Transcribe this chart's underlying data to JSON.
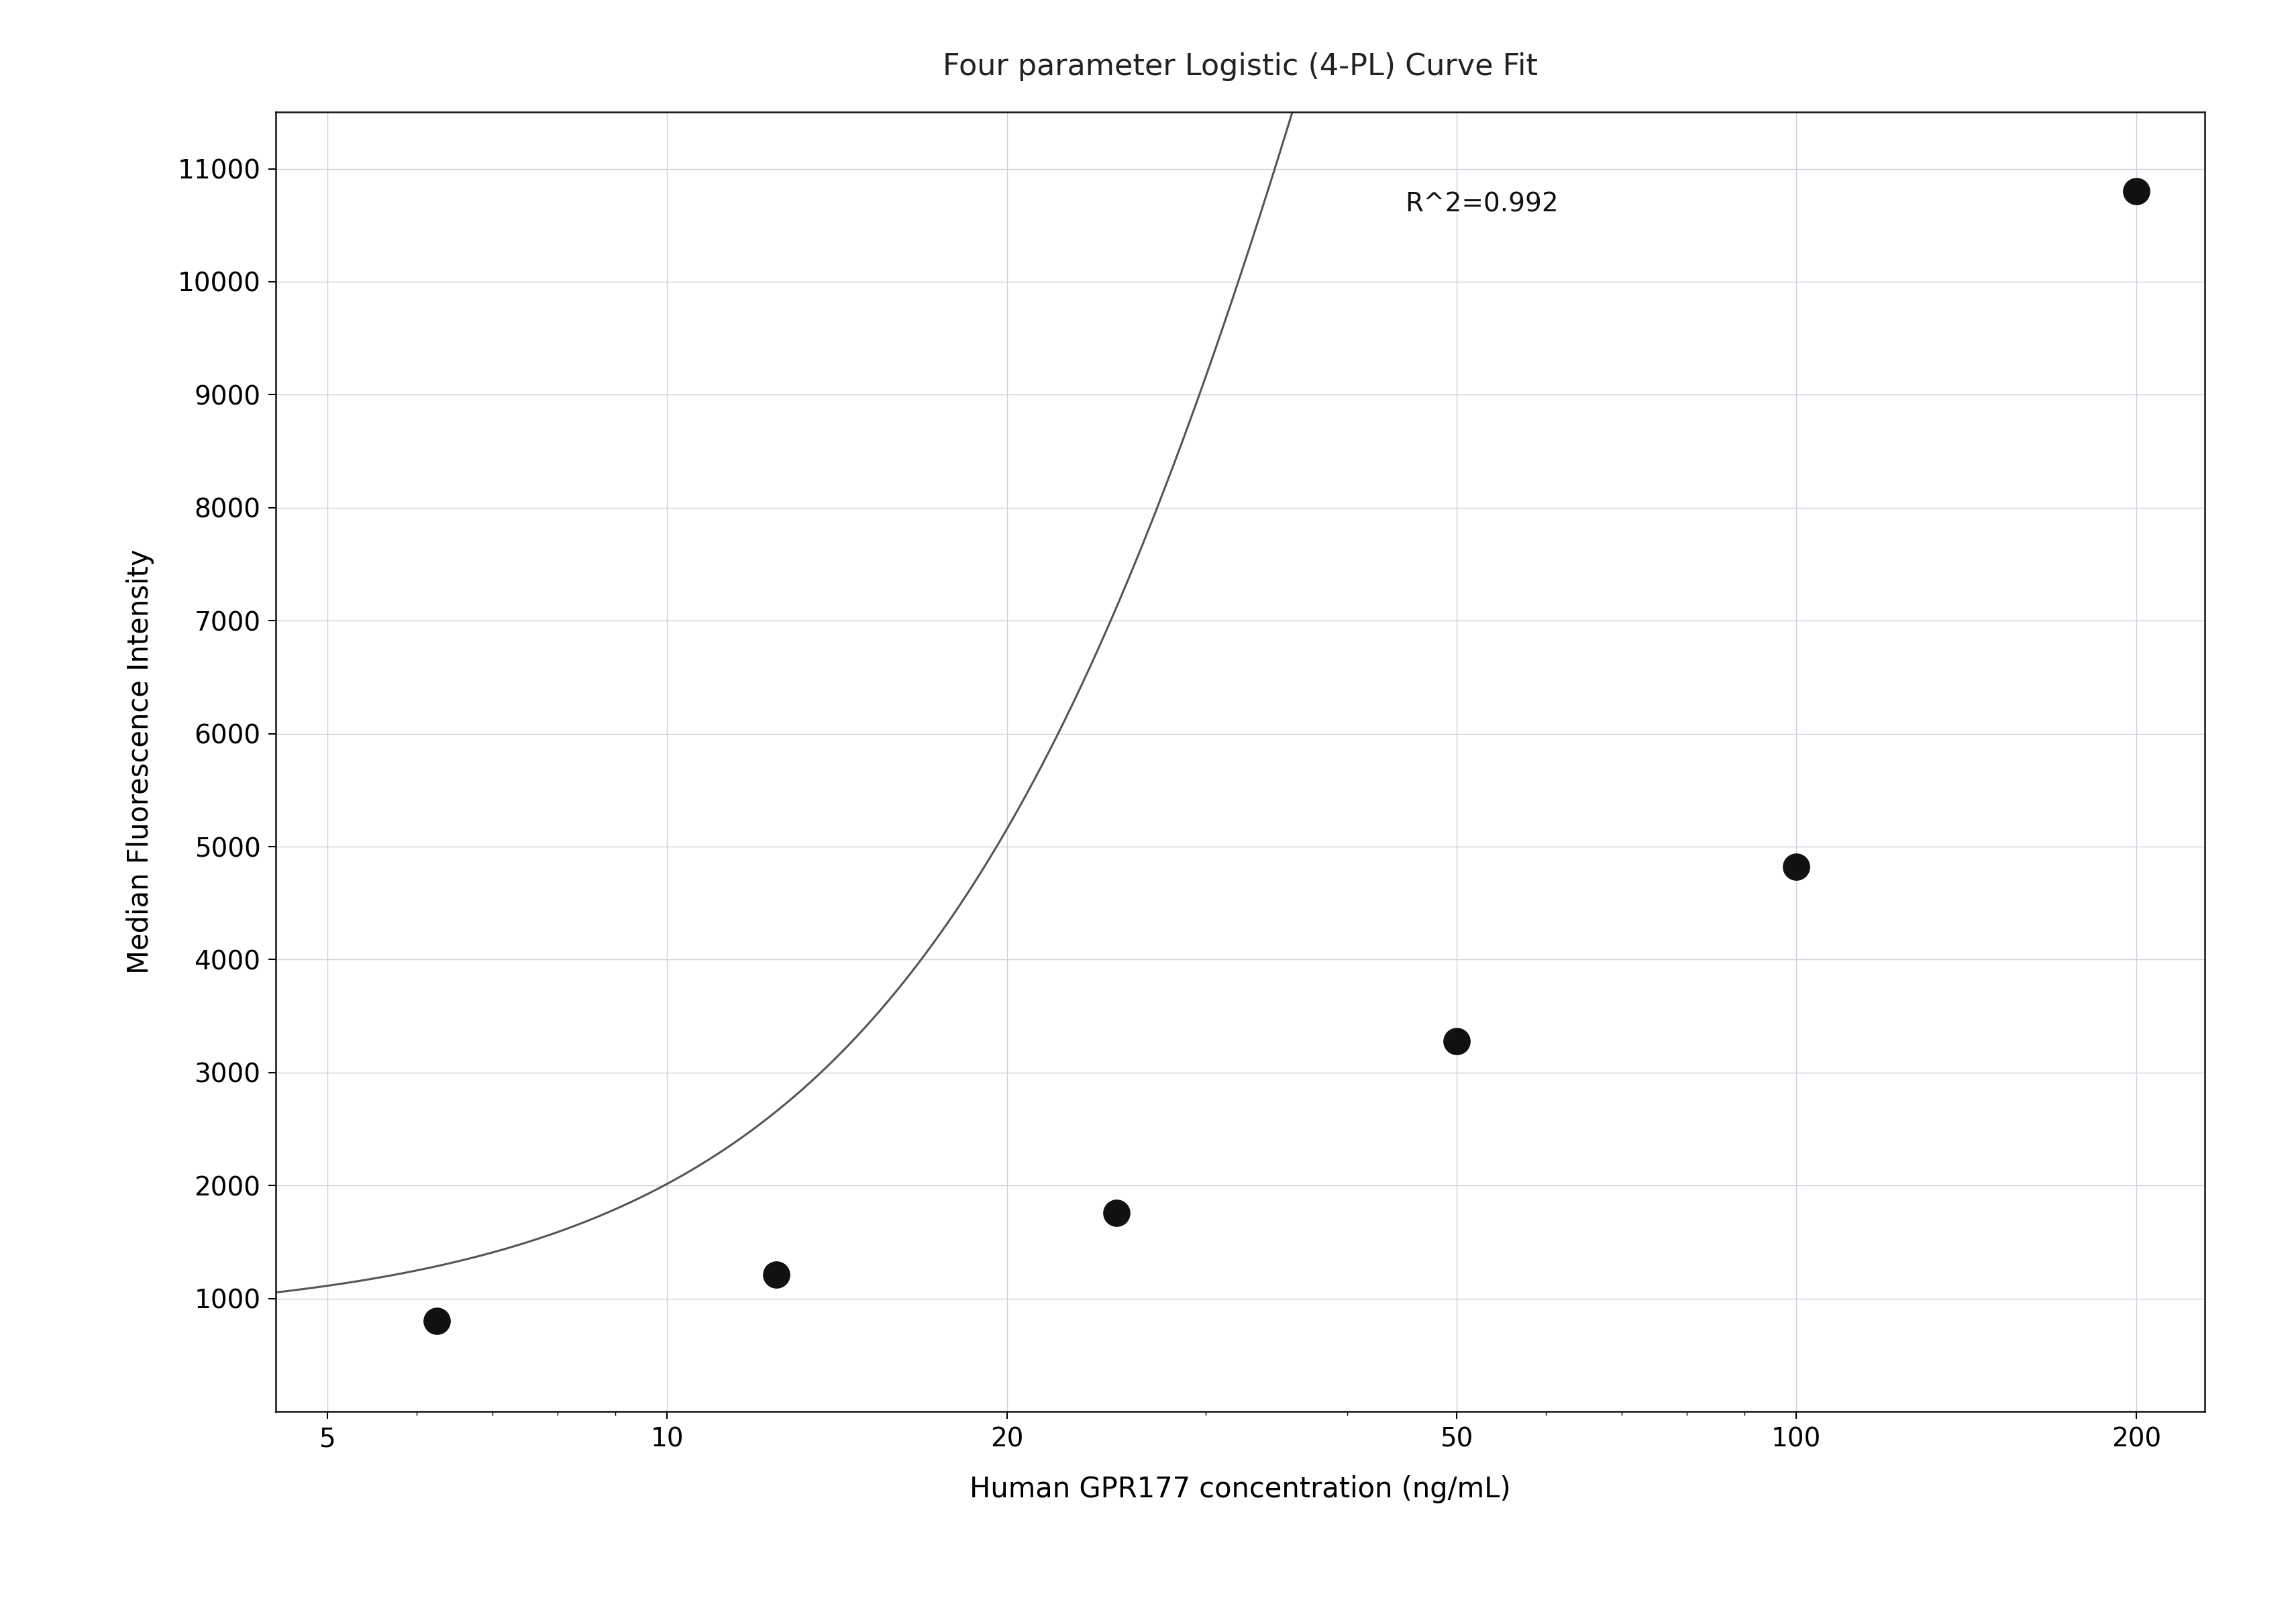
{
  "title": "Four parameter Logistic (4-PL) Curve Fit",
  "xlabel": "Human GPR177 concentration (ng/mL)",
  "ylabel": "Median Fluorescence Intensity",
  "r_squared_text": "R^2=0.992",
  "data_x": [
    6.25,
    12.5,
    25.0,
    50.0,
    100.0,
    200.0
  ],
  "data_y": [
    800,
    1210,
    1760,
    3280,
    4820,
    10800
  ],
  "xscale": "log",
  "xlim": [
    4.5,
    230
  ],
  "xticks": [
    5,
    10,
    20,
    50,
    100,
    200
  ],
  "ylim": [
    0,
    11500
  ],
  "yticks": [
    1000,
    2000,
    3000,
    4000,
    5000,
    6000,
    7000,
    8000,
    9000,
    10000,
    11000
  ],
  "grid_color": "#d0d0dc",
  "background_color": "#ffffff",
  "plot_bg_color": "#ffffff",
  "dot_color": "#111111",
  "curve_color": "#555555",
  "title_fontsize": 32,
  "label_fontsize": 30,
  "tick_fontsize": 28,
  "annotation_fontsize": 28,
  "dot_size": 800,
  "line_width": 2.2,
  "r2_x": 45,
  "r2_y": 10800
}
